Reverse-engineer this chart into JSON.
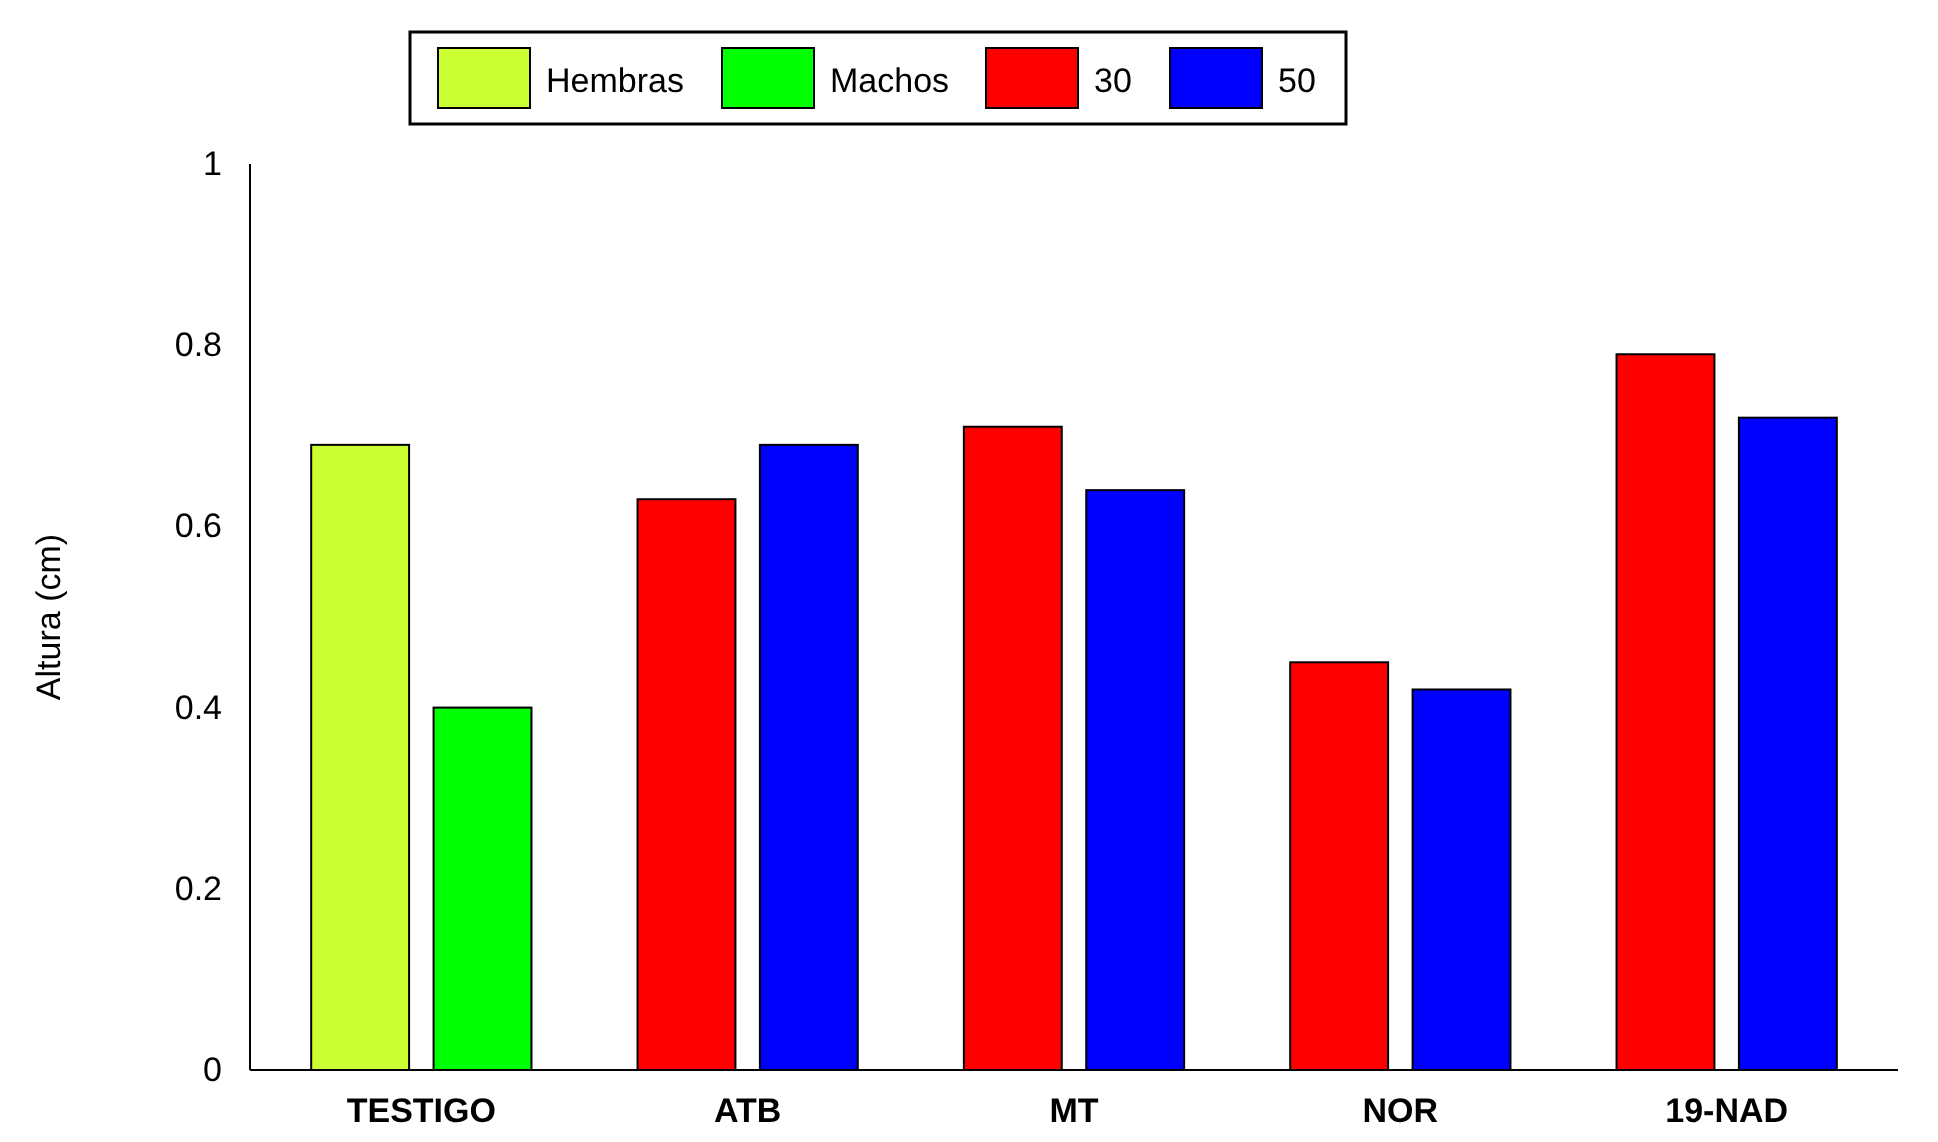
{
  "chart_data": {
    "type": "bar",
    "ylabel": "Altura (cm)",
    "categories": [
      "TESTIGO",
      "ATB",
      "MT",
      "NOR",
      "19-NAD"
    ],
    "series": [
      {
        "name": "Hembras",
        "color": "#ccff33",
        "values": [
          0.69,
          null,
          null,
          null,
          null
        ]
      },
      {
        "name": "Machos",
        "color": "#00ff00",
        "values": [
          0.4,
          null,
          null,
          null,
          null
        ]
      },
      {
        "name": "30",
        "color": "#ff0000",
        "values": [
          null,
          0.63,
          0.71,
          0.45,
          0.79
        ]
      },
      {
        "name": "50",
        "color": "#0000ff",
        "values": [
          null,
          0.69,
          0.64,
          0.42,
          0.72
        ]
      }
    ],
    "ylim": [
      0,
      1
    ],
    "yticks": [
      0,
      0.2,
      0.4,
      0.6,
      0.8,
      1
    ],
    "grid": false,
    "legend": "top"
  }
}
